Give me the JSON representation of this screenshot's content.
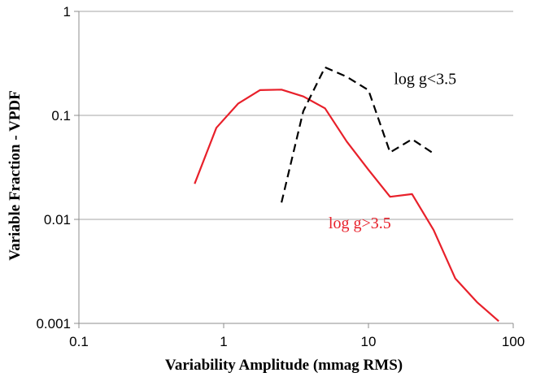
{
  "chart_data": {
    "type": "line",
    "title": "",
    "xlabel": "Variability Amplitude (mmag RMS)",
    "ylabel": "Variable Fraction - VPDF",
    "xscale": "log",
    "yscale": "log",
    "xlim": [
      0.1,
      100
    ],
    "ylim": [
      0.001,
      1
    ],
    "x_ticks": [
      "0.1",
      "1",
      "10",
      "100"
    ],
    "y_ticks": [
      "0.001",
      "0.01",
      "0.1",
      "1"
    ],
    "grid": "horizontal",
    "legend": "none (series labelled directly on plot)",
    "series": [
      {
        "name": "log g>3.5",
        "color": "#e8202a",
        "dash": "solid",
        "x": [
          0.63,
          0.89,
          1.26,
          1.78,
          2.51,
          3.55,
          5.01,
          7.08,
          10.0,
          14.1,
          20.0,
          28.2,
          39.8,
          56.2,
          79.4
        ],
        "y": [
          0.022,
          0.076,
          0.13,
          0.175,
          0.177,
          0.152,
          0.117,
          0.056,
          0.03,
          0.0165,
          0.0175,
          0.0079,
          0.0027,
          0.0016,
          0.00105
        ]
      },
      {
        "name": "log g<3.5",
        "color": "#000000",
        "dash": "dashed",
        "x": [
          2.51,
          3.55,
          5.01,
          7.08,
          10.0,
          14.1,
          20.0,
          28.2
        ],
        "y": [
          0.0145,
          0.11,
          0.29,
          0.235,
          0.175,
          0.044,
          0.059,
          0.043
        ]
      }
    ]
  }
}
